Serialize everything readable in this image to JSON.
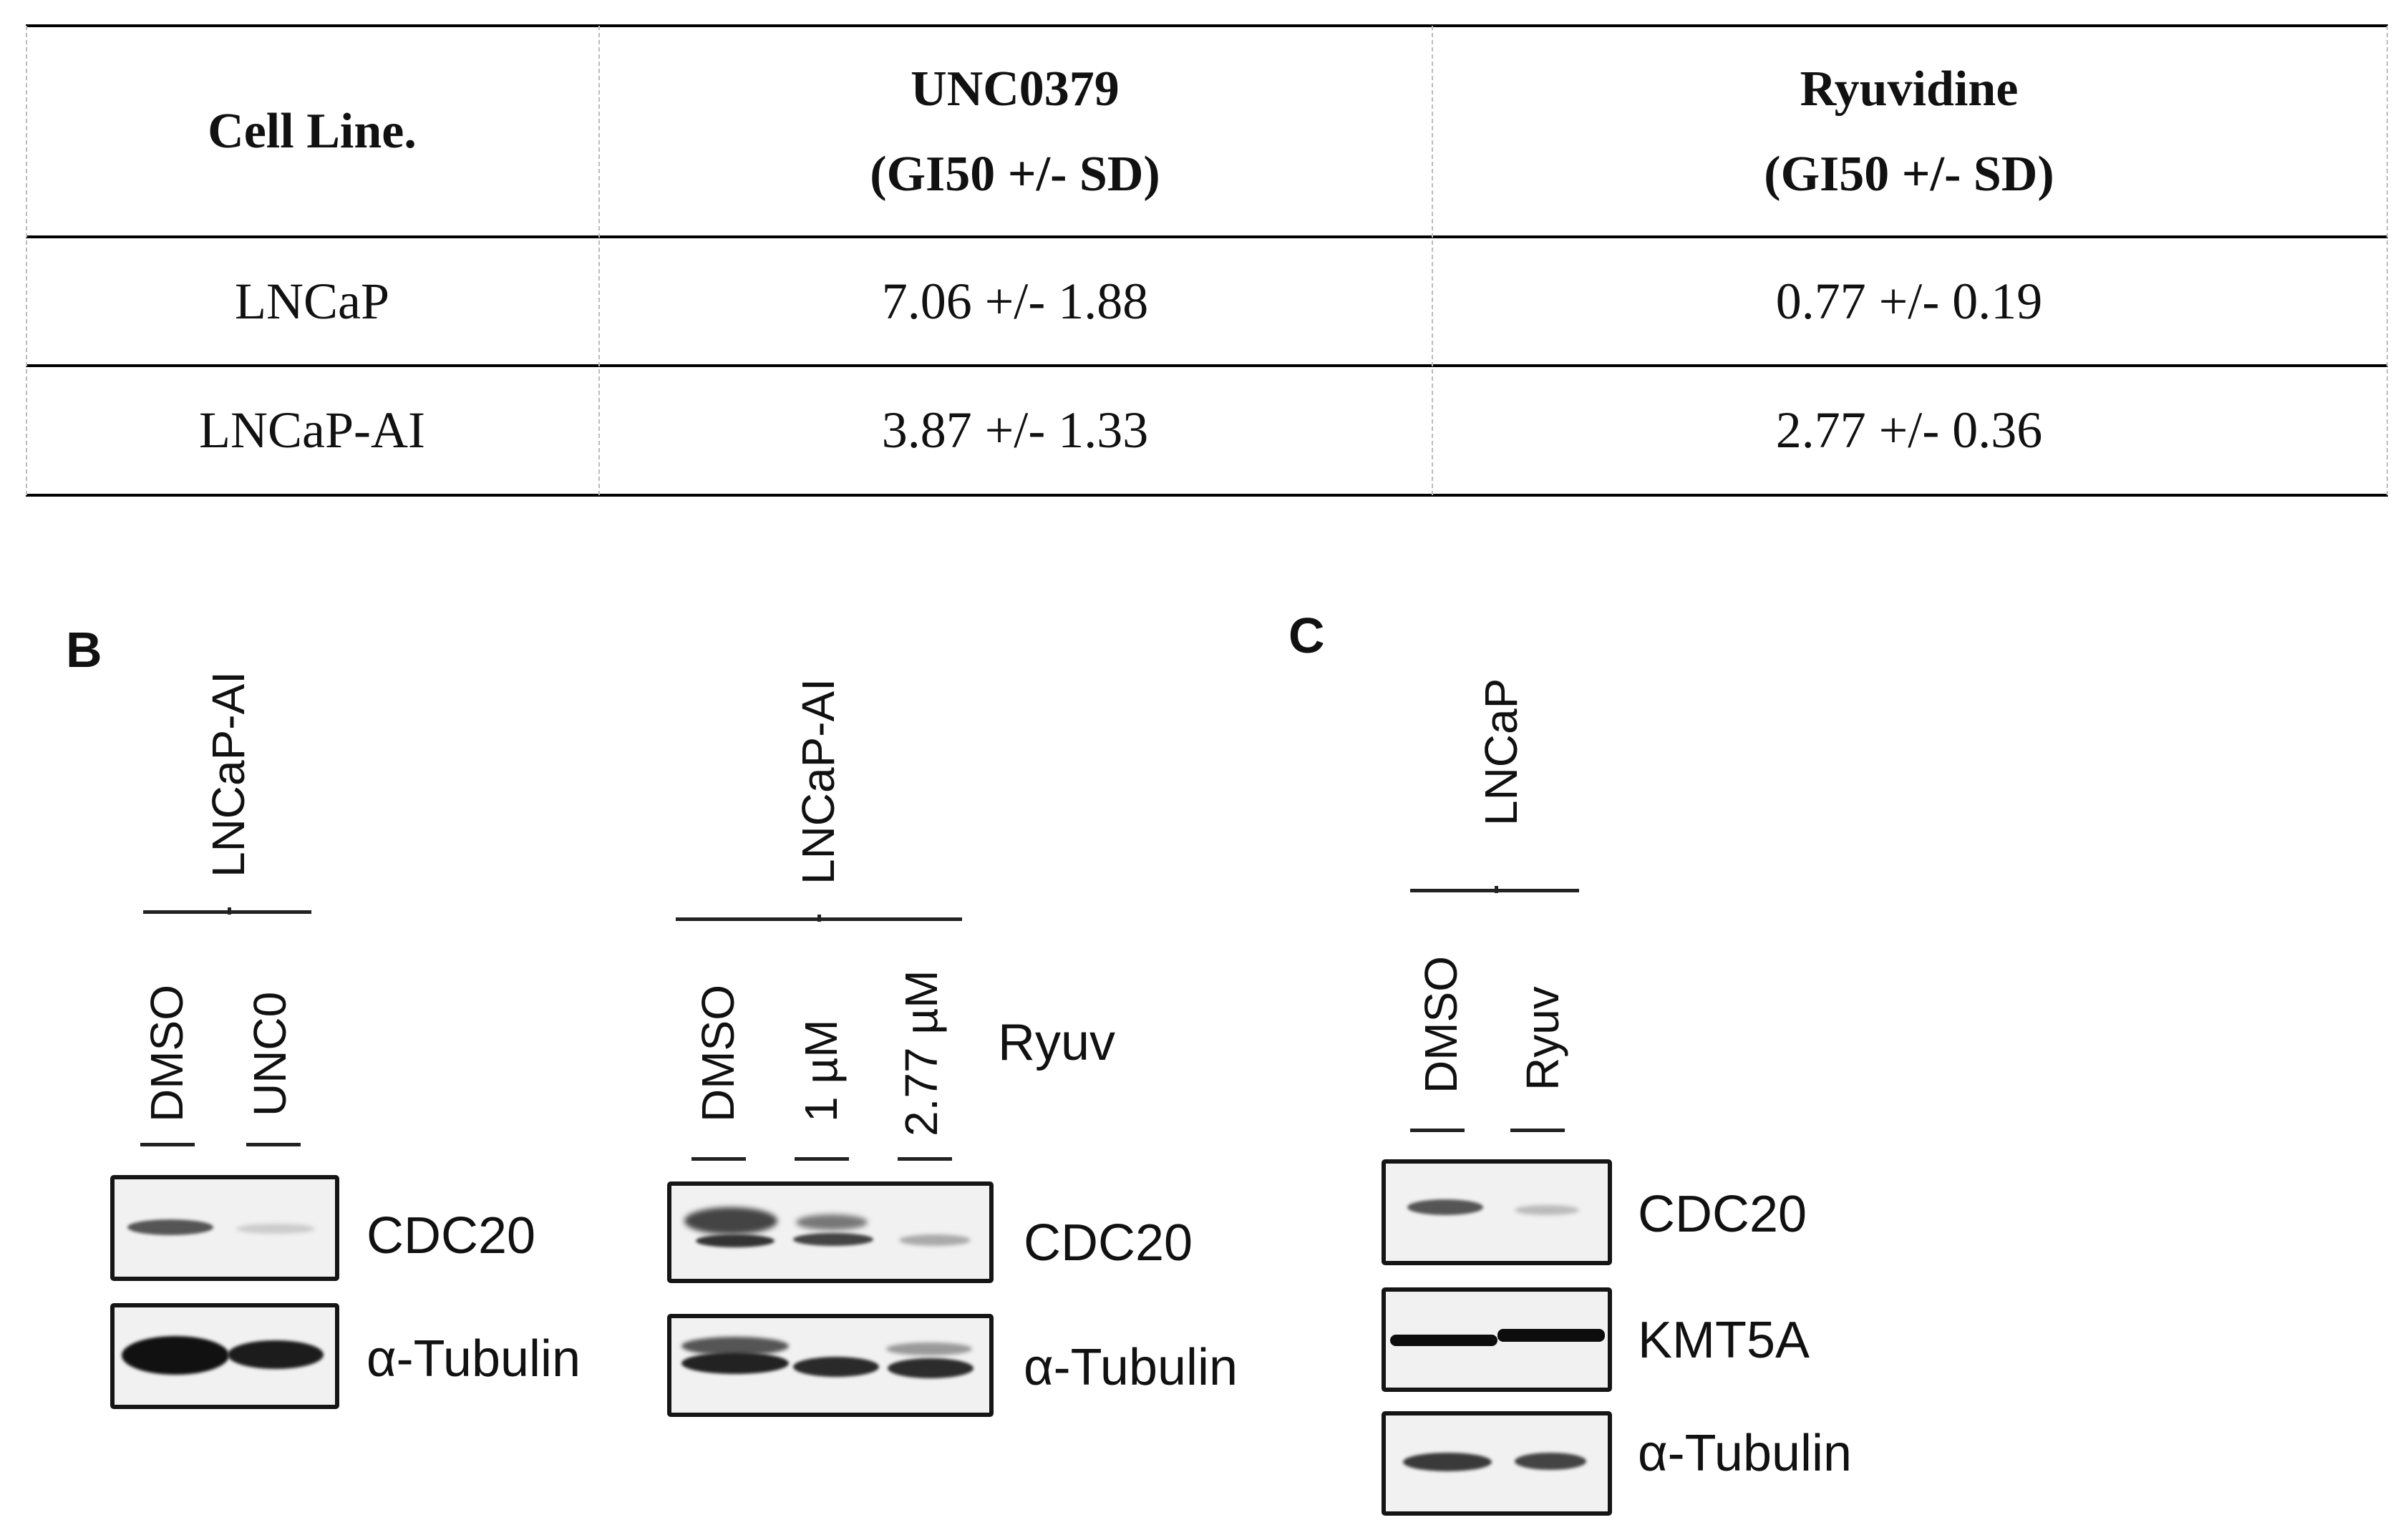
{
  "table": {
    "headers": [
      {
        "line1": "Cell Line.",
        "line2": ""
      },
      {
        "line1": "UNC0379",
        "line2": "(GI50 +/- SD)"
      },
      {
        "line1": "Ryuvidine",
        "line2": "(GI50 +/- SD)"
      }
    ],
    "rows": [
      {
        "cell_line": "LNCaP",
        "unc0379": "7.06 +/- 1.88",
        "ryuvidine": "0.77 +/- 0.19"
      },
      {
        "cell_line": "LNCaP-AI",
        "unc0379": "3.87 +/- 1.33",
        "ryuvidine": "2.77 +/- 0.36"
      }
    ]
  },
  "panel_b": {
    "letter": "B",
    "blot1": {
      "cell_line": "LNCaP-AI",
      "lanes": [
        "DMSO",
        "UNC0"
      ],
      "rows": [
        "CDC20",
        "α-Tubulin"
      ]
    },
    "blot2": {
      "cell_line": "LNCaP-AI",
      "lanes": [
        "DMSO",
        "1 µM",
        "2.77 µM"
      ],
      "treatment": "Ryuv",
      "rows": [
        "CDC20",
        "α-Tubulin"
      ]
    }
  },
  "panel_c": {
    "letter": "C",
    "cell_line": "LNCaP",
    "lanes": [
      "DMSO",
      "Ryuv"
    ],
    "rows": [
      "CDC20",
      "KMT5A",
      "α-Tubulin"
    ]
  }
}
